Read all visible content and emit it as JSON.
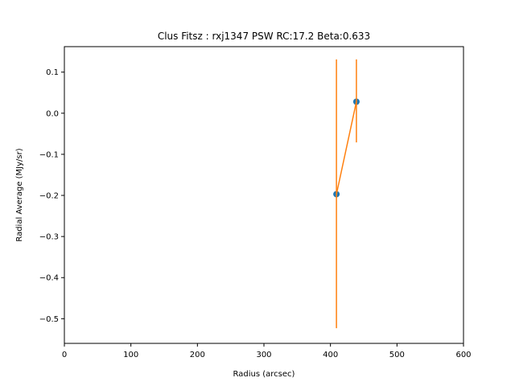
{
  "chart_data": {
    "type": "scatter",
    "title": "Clus Fitsz : rxj1347  PSW  RC:17.2  Beta:0.633",
    "xlabel": "Radius (arcsec)",
    "ylabel": "Radial Average (MJy/sr)",
    "xlim": [
      0,
      600
    ],
    "ylim": [
      -0.56,
      0.162
    ],
    "xticks": [
      0,
      100,
      200,
      300,
      400,
      500,
      600
    ],
    "xtick_labels": [
      "0",
      "100",
      "200",
      "300",
      "400",
      "500",
      "600"
    ],
    "yticks": [
      0.1,
      0.0,
      -0.1,
      -0.2,
      -0.3,
      -0.4,
      -0.5
    ],
    "ytick_labels": [
      "0.1",
      "0.0",
      "−0.1",
      "−0.2",
      "−0.3",
      "−0.4",
      "−0.5"
    ],
    "grid": false,
    "series": [
      {
        "marker": "circle",
        "color": "#1f77b4",
        "x": [
          409,
          439
        ],
        "y": [
          -0.197,
          0.028
        ]
      },
      {
        "line": true,
        "color": "#ff7f0e",
        "x": [
          409,
          439
        ],
        "y": [
          -0.197,
          0.028
        ],
        "yerr_low": [
          -0.523,
          -0.071
        ],
        "yerr_high": [
          0.131,
          0.131
        ]
      }
    ]
  }
}
